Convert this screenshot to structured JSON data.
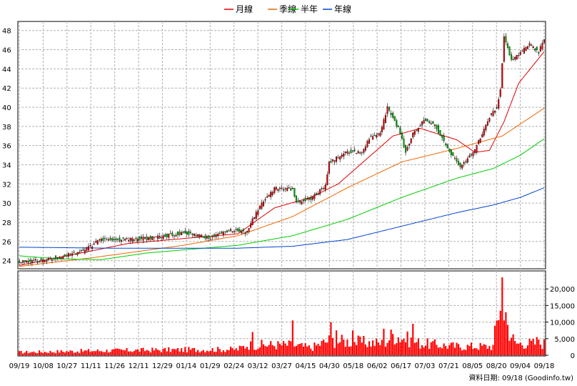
{
  "colors": {
    "ma_month": "#dd0000",
    "ma_quarter": "#ee6600",
    "ma_half": "#00cc00",
    "ma_year": "#0044cc",
    "candle_up": "#dd0000",
    "candle_down": "#00aa00",
    "volume": "#ff0000",
    "grid": "#b0b0b0"
  },
  "chart_data": [
    {
      "type": "candlestick",
      "legend": [
        {
          "label": "月線",
          "color": "#dd0000"
        },
        {
          "label": "季線",
          "color": "#ee6600"
        },
        {
          "label": "半年",
          "color": "#00cc00"
        },
        {
          "label": "年線",
          "color": "#0044cc"
        }
      ],
      "x_tick_labels": [
        "09/19",
        "10/08",
        "10/27",
        "11/11",
        "11/26",
        "12/11",
        "12/29",
        "01/14",
        "01/29",
        "02/24",
        "03/12",
        "03/27",
        "04/15",
        "04/30",
        "05/18",
        "06/02",
        "06/17",
        "07/03",
        "07/21",
        "08/05",
        "08/20",
        "09/04",
        "09/18"
      ],
      "y_tick_labels": [
        "24",
        "26",
        "28",
        "30",
        "32",
        "34",
        "36",
        "38",
        "40",
        "42",
        "44",
        "46",
        "48"
      ],
      "ylim": [
        23.3,
        48.8
      ],
      "grid": true,
      "close_keypoints": [
        [
          0,
          23.8
        ],
        [
          15,
          24.1
        ],
        [
          25,
          24.5
        ],
        [
          35,
          25.0
        ],
        [
          45,
          26.2
        ],
        [
          60,
          26.2
        ],
        [
          75,
          26.4
        ],
        [
          90,
          26.9
        ],
        [
          105,
          26.4
        ],
        [
          115,
          27.2
        ],
        [
          125,
          27.0
        ],
        [
          128,
          28.3
        ],
        [
          135,
          30.5
        ],
        [
          140,
          31.5
        ],
        [
          150,
          31.5
        ],
        [
          152,
          30.0
        ],
        [
          160,
          30.5
        ],
        [
          168,
          31.8
        ],
        [
          170,
          34.2
        ],
        [
          180,
          35.4
        ],
        [
          188,
          35.3
        ],
        [
          192,
          36.8
        ],
        [
          198,
          37.2
        ],
        [
          202,
          40.0
        ],
        [
          208,
          37.8
        ],
        [
          212,
          35.3
        ],
        [
          216,
          37.2
        ],
        [
          222,
          38.6
        ],
        [
          228,
          38.2
        ],
        [
          235,
          35.7
        ],
        [
          242,
          33.8
        ],
        [
          250,
          35.5
        ],
        [
          258,
          39.0
        ],
        [
          262,
          40.0
        ],
        [
          264,
          41.9
        ],
        [
          266,
          47.5
        ],
        [
          270,
          44.8
        ],
        [
          275,
          45.7
        ],
        [
          280,
          46.5
        ],
        [
          285,
          45.8
        ],
        [
          288,
          47.0
        ]
      ],
      "ma_month_keypoints": [
        [
          0,
          23.5
        ],
        [
          60,
          25.8
        ],
        [
          120,
          26.8
        ],
        [
          140,
          29.5
        ],
        [
          160,
          30.6
        ],
        [
          175,
          32.0
        ],
        [
          190,
          34.5
        ],
        [
          205,
          37.0
        ],
        [
          220,
          37.8
        ],
        [
          240,
          36.6
        ],
        [
          250,
          35.3
        ],
        [
          258,
          35.5
        ],
        [
          266,
          38.5
        ],
        [
          274,
          42.5
        ],
        [
          288,
          45.8
        ]
      ],
      "ma_quarter_keypoints": [
        [
          0,
          23.4
        ],
        [
          40,
          24.3
        ],
        [
          90,
          25.6
        ],
        [
          120,
          26.6
        ],
        [
          150,
          28.6
        ],
        [
          180,
          31.6
        ],
        [
          210,
          34.3
        ],
        [
          240,
          35.7
        ],
        [
          265,
          37.0
        ],
        [
          288,
          39.9
        ]
      ],
      "ma_half_keypoints": [
        [
          0,
          24.5
        ],
        [
          20,
          24.2
        ],
        [
          45,
          24.1
        ],
        [
          70,
          24.8
        ],
        [
          120,
          25.6
        ],
        [
          150,
          26.6
        ],
        [
          180,
          28.3
        ],
        [
          210,
          30.6
        ],
        [
          240,
          32.6
        ],
        [
          260,
          33.6
        ],
        [
          275,
          35.0
        ],
        [
          288,
          36.7
        ]
      ],
      "ma_year_keypoints": [
        [
          0,
          25.4
        ],
        [
          50,
          25.3
        ],
        [
          120,
          25.3
        ],
        [
          150,
          25.5
        ],
        [
          180,
          26.2
        ],
        [
          210,
          27.6
        ],
        [
          240,
          29.0
        ],
        [
          260,
          29.8
        ],
        [
          275,
          30.6
        ],
        [
          288,
          31.6
        ]
      ]
    },
    {
      "type": "bar",
      "y_tick_labels": [
        "0",
        "5,000",
        "10,000",
        "15,000",
        "20,000"
      ],
      "ylim": [
        0,
        25000
      ],
      "volume_keypoints": [
        [
          0,
          1000
        ],
        [
          40,
          1500
        ],
        [
          80,
          1800
        ],
        [
          120,
          2000
        ],
        [
          125,
          3500
        ],
        [
          150,
          3500
        ],
        [
          160,
          2500
        ],
        [
          170,
          5000
        ],
        [
          200,
          4000
        ],
        [
          205,
          7000
        ],
        [
          220,
          4000
        ],
        [
          240,
          3000
        ],
        [
          260,
          3000
        ],
        [
          265,
          23000
        ],
        [
          268,
          10000
        ],
        [
          272,
          4000
        ],
        [
          288,
          4000
        ]
      ],
      "volume_spikes": [
        [
          128,
          7000
        ],
        [
          150,
          10500
        ],
        [
          171,
          10000
        ],
        [
          174,
          7500
        ],
        [
          183,
          7500
        ],
        [
          200,
          8000
        ],
        [
          216,
          9500
        ],
        [
          265,
          23500
        ],
        [
          266,
          10500
        ],
        [
          284,
          5500
        ]
      ]
    }
  ],
  "footer": {
    "source_label": "資料日期: 09/18  (Goodinfo.tw)"
  }
}
